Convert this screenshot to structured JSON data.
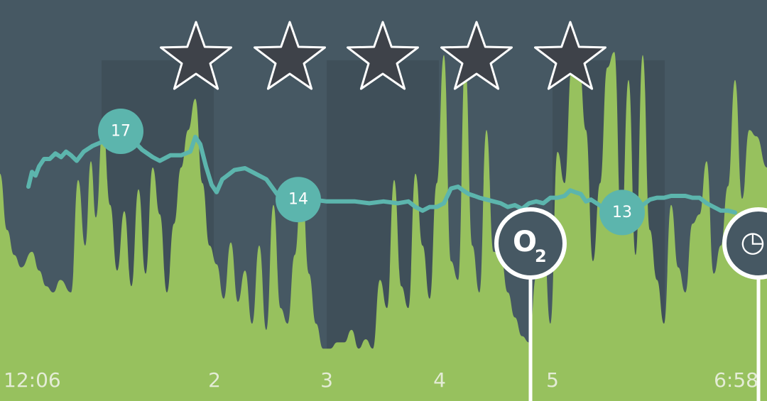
{
  "chart_data": {
    "type": "area",
    "title": "",
    "x_tick_labels": [
      "12:06",
      "2",
      "3",
      "4",
      "5",
      "6:58"
    ],
    "rating": {
      "stars": 5,
      "max": 5
    },
    "activity_series": {
      "name": "",
      "color": "#97c15e",
      "x": [
        0,
        10,
        20,
        30,
        45,
        55,
        65,
        75,
        85,
        100,
        110,
        120,
        128,
        135,
        145,
        155,
        165,
        175,
        185,
        195,
        205,
        215,
        225,
        235,
        245,
        255,
        265,
        275,
        285,
        295,
        305,
        315,
        325,
        335,
        345,
        355,
        365,
        375,
        385,
        395,
        405,
        415,
        425,
        435,
        445,
        455,
        465,
        475,
        485,
        495,
        505,
        515,
        525,
        535,
        545,
        555,
        565,
        575,
        585,
        595,
        605,
        615,
        625,
        635,
        645,
        655,
        665,
        675,
        685,
        695,
        705,
        715,
        725,
        735,
        745,
        755,
        765,
        775,
        785,
        795,
        805,
        815,
        825,
        835,
        845,
        855,
        865,
        875,
        885,
        895,
        905,
        915,
        925,
        935,
        945,
        955,
        965,
        975,
        985,
        995,
        1005,
        1015,
        1025,
        1035,
        1045,
        1055,
        1065,
        1080
      ],
      "y": [
        0.58,
        0.4,
        0.32,
        0.28,
        0.33,
        0.27,
        0.22,
        0.2,
        0.24,
        0.2,
        0.56,
        0.35,
        0.62,
        0.44,
        0.74,
        0.48,
        0.27,
        0.46,
        0.22,
        0.53,
        0.26,
        0.6,
        0.45,
        0.2,
        0.42,
        0.6,
        0.72,
        0.82,
        0.55,
        0.35,
        0.29,
        0.18,
        0.36,
        0.17,
        0.27,
        0.1,
        0.35,
        0.08,
        0.48,
        0.15,
        0.1,
        0.32,
        0.56,
        0.26,
        0.1,
        0.02,
        0.02,
        0.04,
        0.04,
        0.08,
        0.02,
        0.05,
        0.02,
        0.24,
        0.15,
        0.56,
        0.22,
        0.15,
        0.58,
        0.35,
        0.18,
        0.55,
        0.96,
        0.3,
        0.24,
        0.94,
        0.35,
        0.2,
        0.72,
        0.33,
        0.32,
        0.2,
        0.12,
        0.06,
        0.04,
        0.25,
        0.4,
        0.1,
        0.65,
        0.55,
        0.92,
        0.95,
        0.72,
        0.3,
        0.55,
        0.92,
        0.97,
        0.4,
        0.88,
        0.32,
        0.96,
        0.4,
        0.24,
        0.1,
        0.48,
        0.28,
        0.2,
        0.42,
        0.45,
        0.62,
        0.26,
        0.35,
        0.54,
        0.88,
        0.5,
        0.72,
        0.7,
        0.6
      ]
    },
    "line_series": {
      "name": "",
      "color": "#5cb5ad",
      "x": [
        40,
        45,
        50,
        55,
        62,
        70,
        78,
        86,
        93,
        100,
        108,
        118,
        130,
        142,
        155,
        170,
        185,
        200,
        215,
        225,
        240,
        255,
        268,
        275,
        282,
        290,
        298,
        305,
        313,
        320,
        330,
        345,
        360,
        375,
        390,
        405,
        420,
        440,
        460,
        480,
        500,
        520,
        540,
        560,
        575,
        585,
        595,
        605,
        615,
        625,
        635,
        645,
        652,
        660,
        668,
        675,
        685,
        695,
        705,
        715,
        725,
        735,
        745,
        755,
        765,
        775,
        785,
        795,
        803,
        810,
        818,
        825,
        832,
        840,
        848,
        856,
        864,
        870,
        876,
        885,
        895,
        905,
        915,
        925,
        935,
        945,
        955,
        965,
        975,
        985,
        995,
        1005,
        1015,
        1025,
        1035
      ],
      "y": [
        12.5,
        13.3,
        13.1,
        13.6,
        14.0,
        14.0,
        14.3,
        14.1,
        14.4,
        14.2,
        13.9,
        14.4,
        14.7,
        14.9,
        15.1,
        15.5,
        15.1,
        14.5,
        14.1,
        13.9,
        14.2,
        14.2,
        14.4,
        15.2,
        14.8,
        13.6,
        12.6,
        12.2,
        12.9,
        13.1,
        13.4,
        13.5,
        13.2,
        12.9,
        12.1,
        11.9,
        11.8,
        11.8,
        11.7,
        11.7,
        11.7,
        11.6,
        11.7,
        11.6,
        11.7,
        11.4,
        11.2,
        11.4,
        11.4,
        11.6,
        12.4,
        12.5,
        12.3,
        12.1,
        12.0,
        11.9,
        11.8,
        11.7,
        11.6,
        11.4,
        11.5,
        11.3,
        11.6,
        11.7,
        11.6,
        11.9,
        11.9,
        12.0,
        12.3,
        12.2,
        12.1,
        11.7,
        11.8,
        11.6,
        11.4,
        11.6,
        11.5,
        11.5,
        11.1,
        11.1,
        11.3,
        11.5,
        11.8,
        11.9,
        11.9,
        12.0,
        12.0,
        12.0,
        11.9,
        11.9,
        11.6,
        11.4,
        11.2,
        11.2,
        11.1
      ]
    },
    "line_labels": [
      {
        "text": "17",
        "x": 170,
        "y": 15.5
      },
      {
        "text": "14",
        "x": 420,
        "y": 11.8
      },
      {
        "text": "13",
        "x": 876,
        "y": 11.1
      }
    ],
    "markers": [
      {
        "name": "o2-marker",
        "glyph": "O",
        "subscript": "2",
        "x": 747
      },
      {
        "name": "clock-marker",
        "glyph": "◷",
        "subscript": "",
        "x": 1068
      }
    ],
    "colors": {
      "background": "#465863",
      "band_dark": "#3f4f59",
      "activity": "#97c15e",
      "line": "#5cb5ad",
      "star_fill": "#3e4249",
      "star_stroke": "#ffffff",
      "marker_ring": "#ffffff",
      "tick_label": "#e4ecd6"
    }
  }
}
